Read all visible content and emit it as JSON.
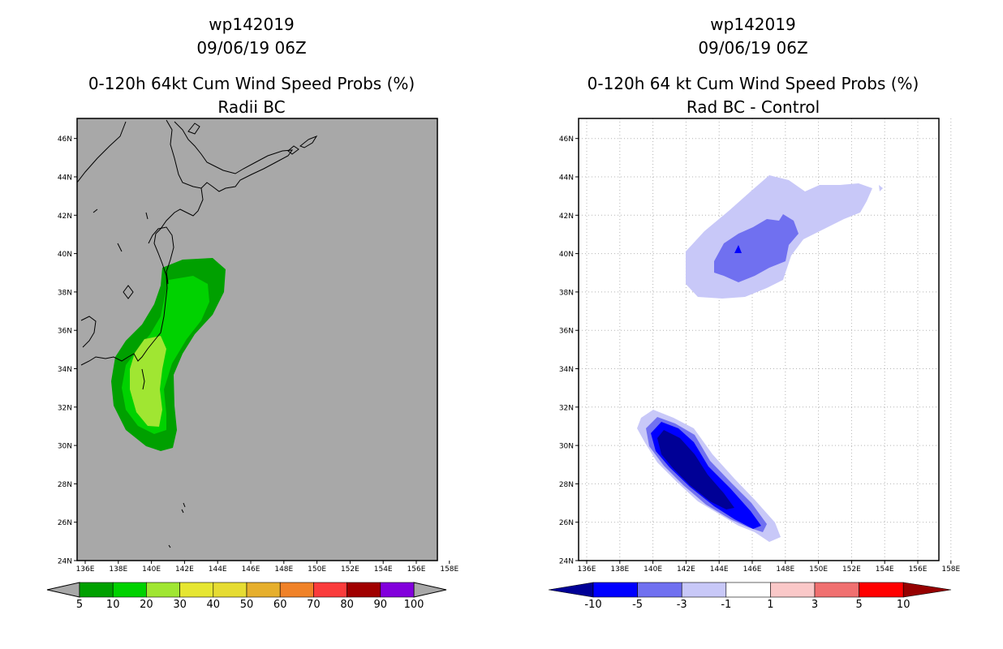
{
  "left": {
    "storm_id": "wp142019",
    "datetime": "09/06/19 06Z",
    "title": "0-120h 64kt Cum Wind Speed Probs (%)",
    "subtitle": "Radii BC",
    "lat_labels": [
      "24N",
      "26N",
      "28N",
      "30N",
      "32N",
      "34N",
      "36N",
      "38N",
      "40N",
      "42N",
      "44N",
      "46N"
    ],
    "lon_labels": [
      "136E",
      "138E",
      "140E",
      "142E",
      "144E",
      "146E",
      "148E",
      "150E",
      "152E",
      "154E",
      "156E",
      "158E"
    ],
    "background_color": "#a8a8a8",
    "colorbar": {
      "colors": [
        "#00a000",
        "#00d200",
        "#a0e632",
        "#e6e632",
        "#e6dc32",
        "#e6af2d",
        "#f08228",
        "#fa3c3c",
        "#a00000",
        "#8200dc"
      ],
      "labels": [
        "5",
        "10",
        "20",
        "30",
        "40",
        "50",
        "60",
        "70",
        "80",
        "90",
        "100"
      ]
    }
  },
  "right": {
    "storm_id": "wp142019",
    "datetime": "09/06/19 06Z",
    "title": "0-120h 64 kt Cum Wind Speed Probs (%)",
    "subtitle": "Rad BC - Control",
    "lat_labels": [
      "24N",
      "26N",
      "28N",
      "30N",
      "32N",
      "34N",
      "36N",
      "38N",
      "40N",
      "42N",
      "44N",
      "46N"
    ],
    "lon_labels": [
      "136E",
      "138E",
      "140E",
      "142E",
      "144E",
      "146E",
      "148E",
      "150E",
      "152E",
      "154E",
      "156E",
      "158E"
    ],
    "background_color": "#ffffff",
    "colorbar": {
      "colors": [
        "#000096",
        "#0000ff",
        "#7070f0",
        "#c8c8f8",
        "#ffffff",
        "#fac8c8",
        "#f07070",
        "#ff0000",
        "#960000"
      ],
      "labels": [
        "-10",
        "-5",
        "-3",
        "-1",
        "1",
        "3",
        "5",
        "10"
      ]
    }
  }
}
